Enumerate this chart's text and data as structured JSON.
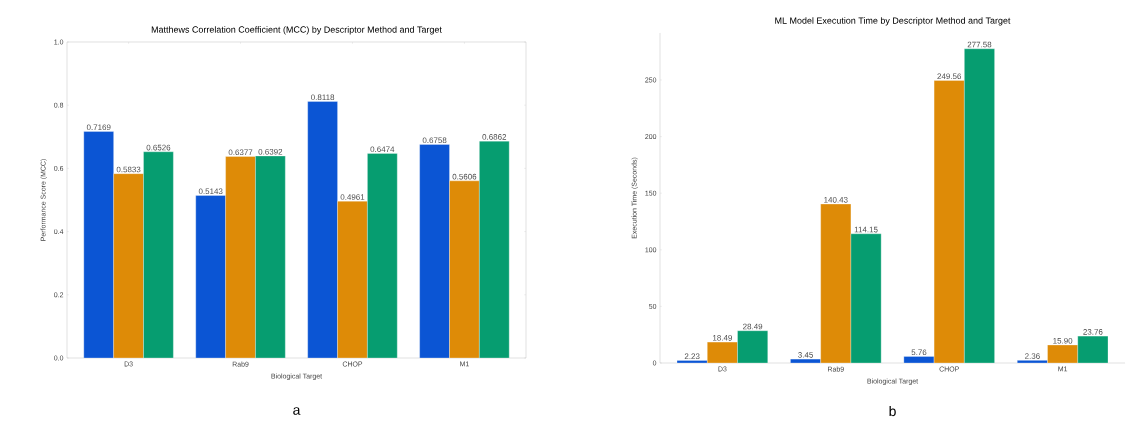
{
  "chart_data": [
    {
      "type": "bar",
      "title": "Matthews Correlation Coefficient (MCC) by Descriptor Method and Target",
      "xlabel": "Biological Target",
      "ylabel": "Performance Score (MCC)",
      "categories": [
        "D3",
        "Rab9",
        "CHOP",
        "M1"
      ],
      "ylim": [
        0,
        1
      ],
      "yticks": [
        {
          "value": 0,
          "label": "0.0"
        },
        {
          "value": 0.2,
          "label": "0.2"
        },
        {
          "value": 0.4,
          "label": "0.4"
        },
        {
          "value": 0.6,
          "label": "0.6"
        },
        {
          "value": 0.8,
          "label": "0.8"
        },
        {
          "value": 1,
          "label": "1.0"
        }
      ],
      "annotations": [
        "a"
      ],
      "series": [
        {
          "color": "#0b55d4",
          "values": [
            0.7169,
            0.5143,
            0.8118,
            0.6758
          ],
          "value_labels": [
            "0.7169",
            "0.5143",
            "0.8118",
            "0.6758"
          ]
        },
        {
          "color": "#de8b07",
          "values": [
            0.5833,
            0.6377,
            0.4961,
            0.5606
          ],
          "value_labels": [
            "0.5833",
            "0.6377",
            "0.4961",
            "0.5606"
          ]
        },
        {
          "color": "#069d70",
          "values": [
            0.6526,
            0.6392,
            0.6474,
            0.6862
          ],
          "value_labels": [
            "0.6526",
            "0.6392",
            "0.6474",
            "0.6862"
          ]
        }
      ]
    },
    {
      "type": "bar",
      "title": "ML Model Execution Time by Descriptor Method and Target",
      "xlabel": "Biological Target",
      "ylabel": "Execution Time (Seconds)",
      "categories": [
        "D3",
        "Rab9",
        "CHOP",
        "M1"
      ],
      "ylim": [
        0,
        291.5
      ],
      "yticks": [
        0,
        50,
        100,
        150,
        200,
        250
      ],
      "annotations": [
        "b"
      ],
      "series": [
        {
          "color": "#0b55d4",
          "values": [
            2.23,
            3.45,
            5.76,
            2.36
          ],
          "value_labels": [
            "2.23",
            "3.45",
            "5.76",
            "2.36"
          ]
        },
        {
          "color": "#de8b07",
          "values": [
            18.49,
            140.43,
            249.56,
            15.9
          ],
          "value_labels": [
            "18.49",
            "140.43",
            "249.56",
            "15.90"
          ]
        },
        {
          "color": "#069d70",
          "values": [
            28.49,
            114.15,
            277.58,
            23.76
          ],
          "value_labels": [
            "28.49",
            "114.15",
            "277.58",
            "23.76"
          ]
        }
      ]
    }
  ]
}
